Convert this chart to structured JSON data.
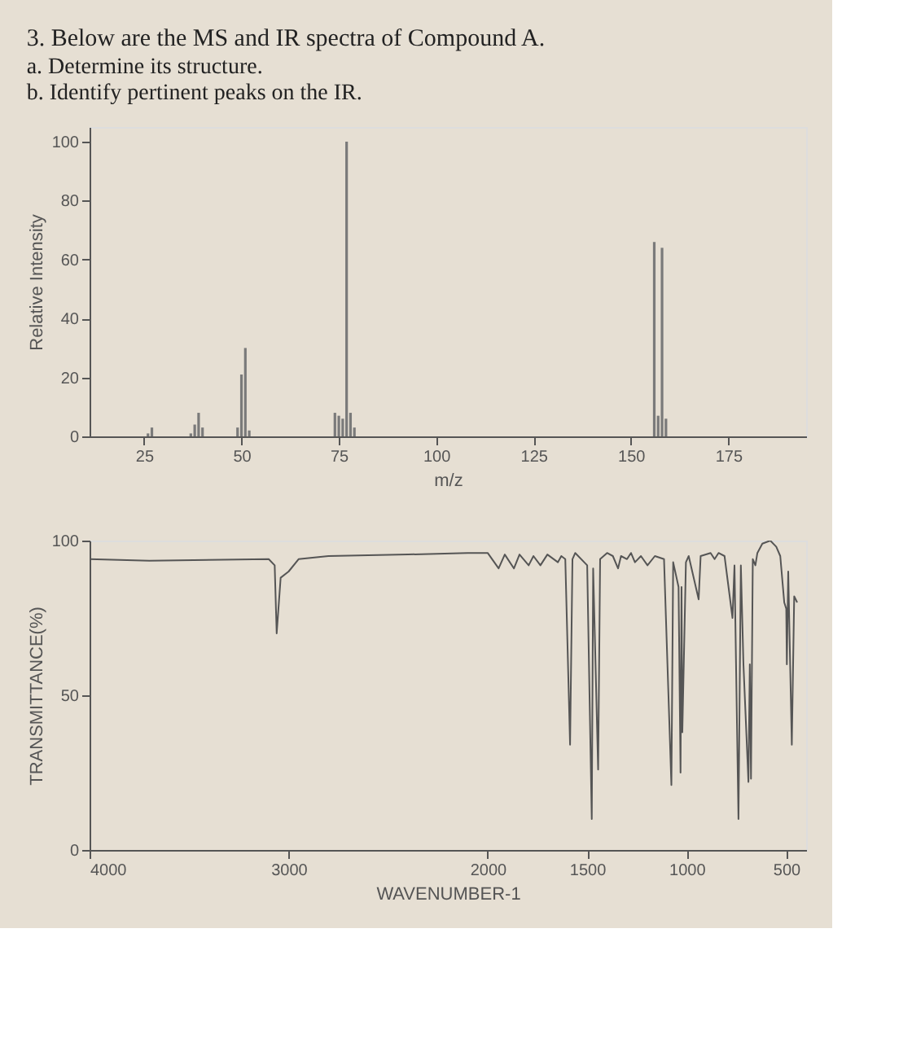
{
  "chart_data": [
    {
      "type": "bar",
      "title": "3. Below are the MS and IR spectra of Compound A.",
      "subtitle": [
        "a. Determine its structure.",
        "b. Identify pertinent peaks on the IR."
      ],
      "xlabel": "m/z",
      "ylabel": "Relative Intensity",
      "color": "#7a7a7a",
      "x": [
        26,
        27,
        37,
        38,
        39,
        40,
        49,
        50,
        51,
        52,
        74,
        75,
        76,
        77,
        78,
        79,
        156,
        157,
        158,
        159
      ],
      "values": [
        1,
        3,
        1,
        4,
        8,
        3,
        3,
        21,
        30,
        2,
        8,
        7,
        6,
        100,
        8,
        3,
        66,
        7,
        64,
        6
      ],
      "xlim": [
        11,
        195
      ],
      "ylim": [
        0,
        105
      ],
      "xticks": [
        25,
        50,
        75,
        100,
        125,
        150,
        175
      ],
      "yticks": [
        0,
        20,
        40,
        60,
        80,
        100
      ]
    },
    {
      "type": "line",
      "xlabel": "WAVENUMBER-1",
      "ylabel": "TRANSMITTANCE(%)",
      "color": "#555555",
      "x": [
        4000,
        3700,
        3100,
        3070,
        3060,
        3040,
        3000,
        2950,
        2800,
        2400,
        2100,
        2000,
        1945,
        1914,
        1868,
        1840,
        1794,
        1770,
        1735,
        1700,
        1647,
        1630,
        1610,
        1586,
        1574,
        1560,
        1500,
        1477,
        1470,
        1445,
        1435,
        1400,
        1371,
        1345,
        1330,
        1300,
        1280,
        1260,
        1230,
        1197,
        1160,
        1114,
        1077,
        1068,
        1041,
        1031,
        1026,
        1022,
        1004,
        990,
        940,
        930,
        880,
        860,
        840,
        810,
        770,
        760,
        740,
        728,
        715,
        690,
        683,
        677,
        668,
        655,
        645,
        620,
        580,
        550,
        530,
        510,
        500,
        497,
        490,
        472,
        460,
        445
      ],
      "values": [
        94,
        93.5,
        94,
        92,
        70,
        88,
        90,
        94,
        95,
        95.5,
        96,
        96,
        91,
        95.5,
        91,
        95.5,
        92,
        95,
        92,
        95.5,
        93,
        95,
        94,
        34,
        94,
        96,
        92,
        10,
        91,
        26,
        94,
        96,
        95,
        91,
        95,
        94,
        96,
        93,
        95,
        92,
        95,
        94,
        21,
        93,
        85,
        25,
        85,
        38,
        93,
        95,
        81,
        95,
        96,
        94,
        96,
        95,
        75,
        92,
        10,
        92,
        60,
        22,
        60,
        23,
        94,
        92,
        96,
        99,
        100,
        98,
        95,
        80,
        78,
        60,
        90,
        34,
        82,
        80
      ],
      "xlim": [
        4000,
        400
      ],
      "ylim": [
        0,
        100
      ],
      "xticks": [
        4000,
        3000,
        2000,
        1500,
        1000,
        500
      ],
      "yticks": [
        0,
        50,
        100
      ]
    }
  ]
}
